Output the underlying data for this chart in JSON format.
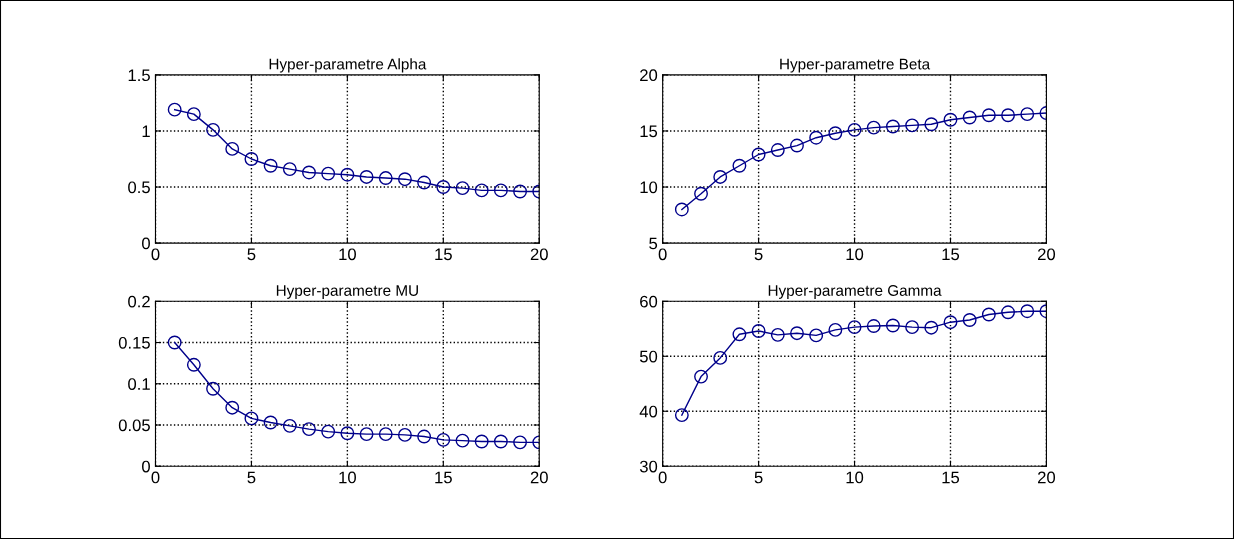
{
  "chart_data": [
    {
      "type": "line",
      "title": "Hyper-parametre Alpha",
      "x": [
        1,
        2,
        3,
        4,
        5,
        6,
        7,
        8,
        9,
        10,
        11,
        12,
        13,
        14,
        15,
        16,
        17,
        18,
        19,
        20
      ],
      "series": [
        {
          "color": "#00008b",
          "values": [
            1.19,
            1.15,
            1.01,
            0.84,
            0.75,
            0.69,
            0.66,
            0.63,
            0.62,
            0.61,
            0.59,
            0.58,
            0.57,
            0.54,
            0.5,
            0.49,
            0.47,
            0.47,
            0.46,
            0.46
          ]
        }
      ],
      "xlim": [
        0,
        20
      ],
      "xticks": [
        0,
        5,
        10,
        15,
        20
      ],
      "ylim": [
        0,
        1.5
      ],
      "yticks": [
        0,
        {
          "value": 0.5,
          "label": "0.5"
        },
        1,
        {
          "value": 1.5,
          "label": "1.5"
        }
      ],
      "grid": true,
      "marker": "circle",
      "line_style": "solid"
    },
    {
      "type": "line",
      "title": "Hyper-parametre Beta",
      "x": [
        1,
        2,
        3,
        4,
        5,
        6,
        7,
        8,
        9,
        10,
        11,
        12,
        13,
        14,
        15,
        16,
        17,
        18,
        19,
        20
      ],
      "series": [
        {
          "color": "#00008b",
          "values": [
            8.0,
            9.4,
            10.9,
            11.9,
            12.9,
            13.3,
            13.7,
            14.4,
            14.8,
            15.1,
            15.3,
            15.4,
            15.5,
            15.6,
            16.0,
            16.2,
            16.4,
            16.4,
            16.5,
            16.6
          ]
        }
      ],
      "xlim": [
        0,
        20
      ],
      "xticks": [
        0,
        5,
        10,
        15,
        20
      ],
      "ylim": [
        5,
        20
      ],
      "yticks": [
        5,
        10,
        15,
        20
      ],
      "grid": true,
      "marker": "circle",
      "line_style": "solid"
    },
    {
      "type": "line",
      "title": "Hyper-parametre MU",
      "x": [
        1,
        2,
        3,
        4,
        5,
        6,
        7,
        8,
        9,
        10,
        11,
        12,
        13,
        14,
        15,
        16,
        17,
        18,
        19,
        20
      ],
      "series": [
        {
          "color": "#00008b",
          "values": [
            0.15,
            0.123,
            0.094,
            0.071,
            0.058,
            0.053,
            0.049,
            0.045,
            0.042,
            0.04,
            0.039,
            0.039,
            0.038,
            0.036,
            0.032,
            0.031,
            0.03,
            0.03,
            0.029,
            0.029
          ]
        }
      ],
      "xlim": [
        0,
        20
      ],
      "xticks": [
        0,
        5,
        10,
        15,
        20
      ],
      "ylim": [
        0,
        0.2
      ],
      "yticks": [
        0,
        {
          "value": 0.05,
          "label": "0.05"
        },
        {
          "value": 0.1,
          "label": "0.1"
        },
        {
          "value": 0.15,
          "label": "0.15"
        },
        {
          "value": 0.2,
          "label": "0.2"
        }
      ],
      "grid": true,
      "marker": "circle",
      "line_style": "solid"
    },
    {
      "type": "line",
      "title": "Hyper-parametre Gamma",
      "x": [
        1,
        2,
        3,
        4,
        5,
        6,
        7,
        8,
        9,
        10,
        11,
        12,
        13,
        14,
        15,
        16,
        17,
        18,
        19,
        20
      ],
      "series": [
        {
          "color": "#00008b",
          "values": [
            39.3,
            46.3,
            49.7,
            54.0,
            54.6,
            53.9,
            54.2,
            53.8,
            54.8,
            55.3,
            55.5,
            55.6,
            55.3,
            55.2,
            56.2,
            56.6,
            57.6,
            58.0,
            58.2,
            58.2
          ]
        }
      ],
      "xlim": [
        0,
        20
      ],
      "xticks": [
        0,
        5,
        10,
        15,
        20
      ],
      "ylim": [
        30,
        60
      ],
      "yticks": [
        30,
        40,
        50,
        60
      ],
      "grid": true,
      "marker": "circle",
      "line_style": "solid"
    }
  ]
}
